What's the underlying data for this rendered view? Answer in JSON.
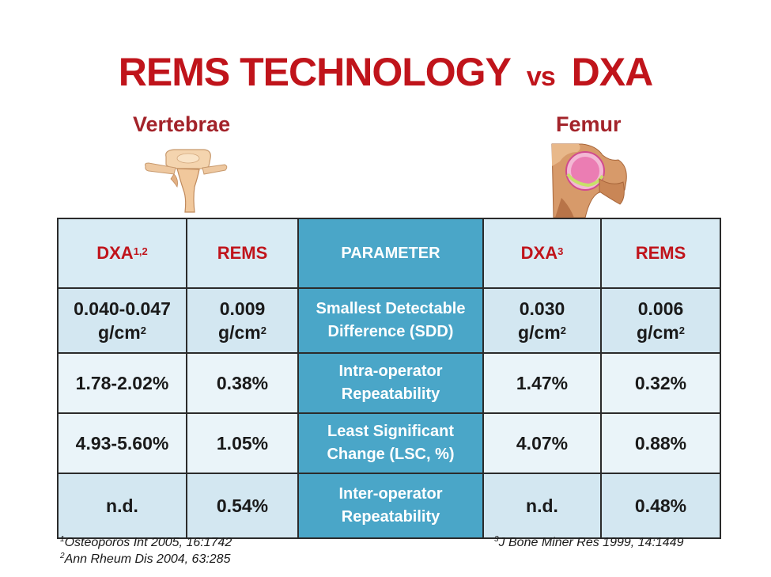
{
  "title": {
    "main": "REMS TECHNOLOGY",
    "vs": "vs",
    "end": "DXA"
  },
  "labels": {
    "left": "Vertebrae",
    "right": "Femur"
  },
  "colors": {
    "title_red": "#c0141b",
    "param_blue": "#4aa6c8",
    "cell_light": "#eaf4f9",
    "cell_dark": "#d3e7f1"
  },
  "table": {
    "header": {
      "dxa_left": "DXA",
      "dxa_left_sup": "1,2",
      "rems_left": "REMS",
      "parameter": "PARAMETER",
      "dxa_right": "DXA",
      "dxa_right_sup": "3",
      "rems_right": "REMS"
    },
    "rows": [
      {
        "dxa_left": "0.040-0.047",
        "dxa_left_unit": "g/cm",
        "dxa_left_unit_sup": "2",
        "rems_left": "0.009",
        "rems_left_unit": "g/cm",
        "rems_left_unit_sup": "2",
        "param_line1": "Smallest Detectable",
        "param_line2": "Difference (SDD)",
        "dxa_right": "0.030",
        "dxa_right_unit": "g/cm",
        "dxa_right_unit_sup": "2",
        "rems_right": "0.006",
        "rems_right_unit": "g/cm",
        "rems_right_unit_sup": "2"
      },
      {
        "dxa_left": "1.78-2.02%",
        "rems_left": "0.38%",
        "param_line1": "Intra-operator",
        "param_line2": "Repeatability",
        "dxa_right": "1.47%",
        "rems_right": "0.32%"
      },
      {
        "dxa_left": "4.93-5.60%",
        "rems_left": "1.05%",
        "param_line1": "Least Significant",
        "param_line2": "Change (LSC, %)",
        "dxa_right": "4.07%",
        "rems_right": "0.88%"
      },
      {
        "dxa_left": "n.d.",
        "rems_left": "0.54%",
        "param_line1": "Inter-operator",
        "param_line2": "Repeatability",
        "dxa_right": "n.d.",
        "rems_right": "0.48%"
      }
    ]
  },
  "references": [
    {
      "sup": "1",
      "text": "Osteoporos Int 2005, 16:1742"
    },
    {
      "sup": "2",
      "text": "Ann Rheum Dis 2004, 63:285"
    },
    {
      "sup": "3",
      "text": "J Bone Miner Res 1999, 14:1449"
    }
  ]
}
